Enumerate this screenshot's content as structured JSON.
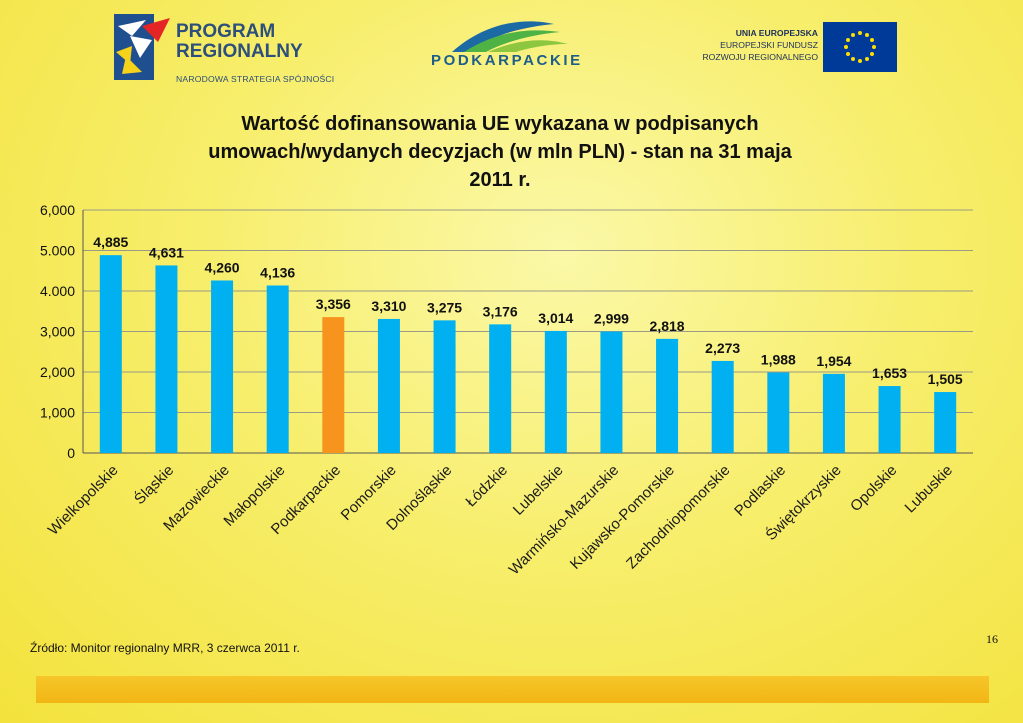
{
  "logos": {
    "program_regionalny": {
      "line1": "PROGRAM",
      "line2": "REGIONALNY",
      "line3": "NARODOWA STRATEGIA SPÓJNOŚCI"
    },
    "podkarpackie": "PODKARPACKIE",
    "ue": {
      "line1": "UNIA EUROPEJSKA",
      "line2": "EUROPEJSKI FUNDUSZ",
      "line3": "ROZWOJU REGIONALNEGO"
    }
  },
  "chart_data": {
    "type": "bar",
    "title": "Wartość dofinansowania UE wykazana w podpisanych umowach/wydanych decyzjach (w mln PLN) - stan na 31 maja 2011 r.",
    "title_lines": [
      "Wartość dofinansowania UE wykazana w podpisanych",
      "umowach/wydanych decyzjach (w mln PLN) - stan na 31 maja",
      "2011 r."
    ],
    "categories": [
      "Wielkopolskie",
      "Śląskie",
      "Mazowieckie",
      "Małopolskie",
      "Podkarpackie",
      "Pomorskie",
      "Dolnośląskie",
      "Łódzkie",
      "Lubelskie",
      "Warmińsko-Mazurskie",
      "Kujawsko-Pomorskie",
      "Zachodniopomorskie",
      "Podlaskie",
      "Świętokrzyskie",
      "Opolskie",
      "Lubuskie"
    ],
    "values": [
      4885,
      4631,
      4260,
      4136,
      3356,
      3310,
      3275,
      3176,
      3014,
      2999,
      2818,
      2273,
      1988,
      1954,
      1653,
      1505
    ],
    "value_labels": [
      "4,885",
      "4,631",
      "4,260",
      "4,136",
      "3,356",
      "3,310",
      "3,275",
      "3,176",
      "3,014",
      "2,999",
      "2,818",
      "2,273",
      "1,988",
      "1,954",
      "1,653",
      "1,505"
    ],
    "y_ticks": [
      0,
      1000,
      2000,
      3000,
      4000,
      5000,
      6000
    ],
    "y_tick_labels": [
      "0",
      "1,000",
      "2,000",
      "3,000",
      "4.000",
      "5.000",
      "6,000"
    ],
    "ylim": [
      0,
      6000
    ],
    "grid": true,
    "bar_color": "#00b0f0",
    "highlight_category": "Podkarpackie",
    "highlight_color": "#f7941d"
  },
  "source": "Źródło: Monitor regionalny MRR, 3 czerwca 2011 r.",
  "page_number": "16"
}
